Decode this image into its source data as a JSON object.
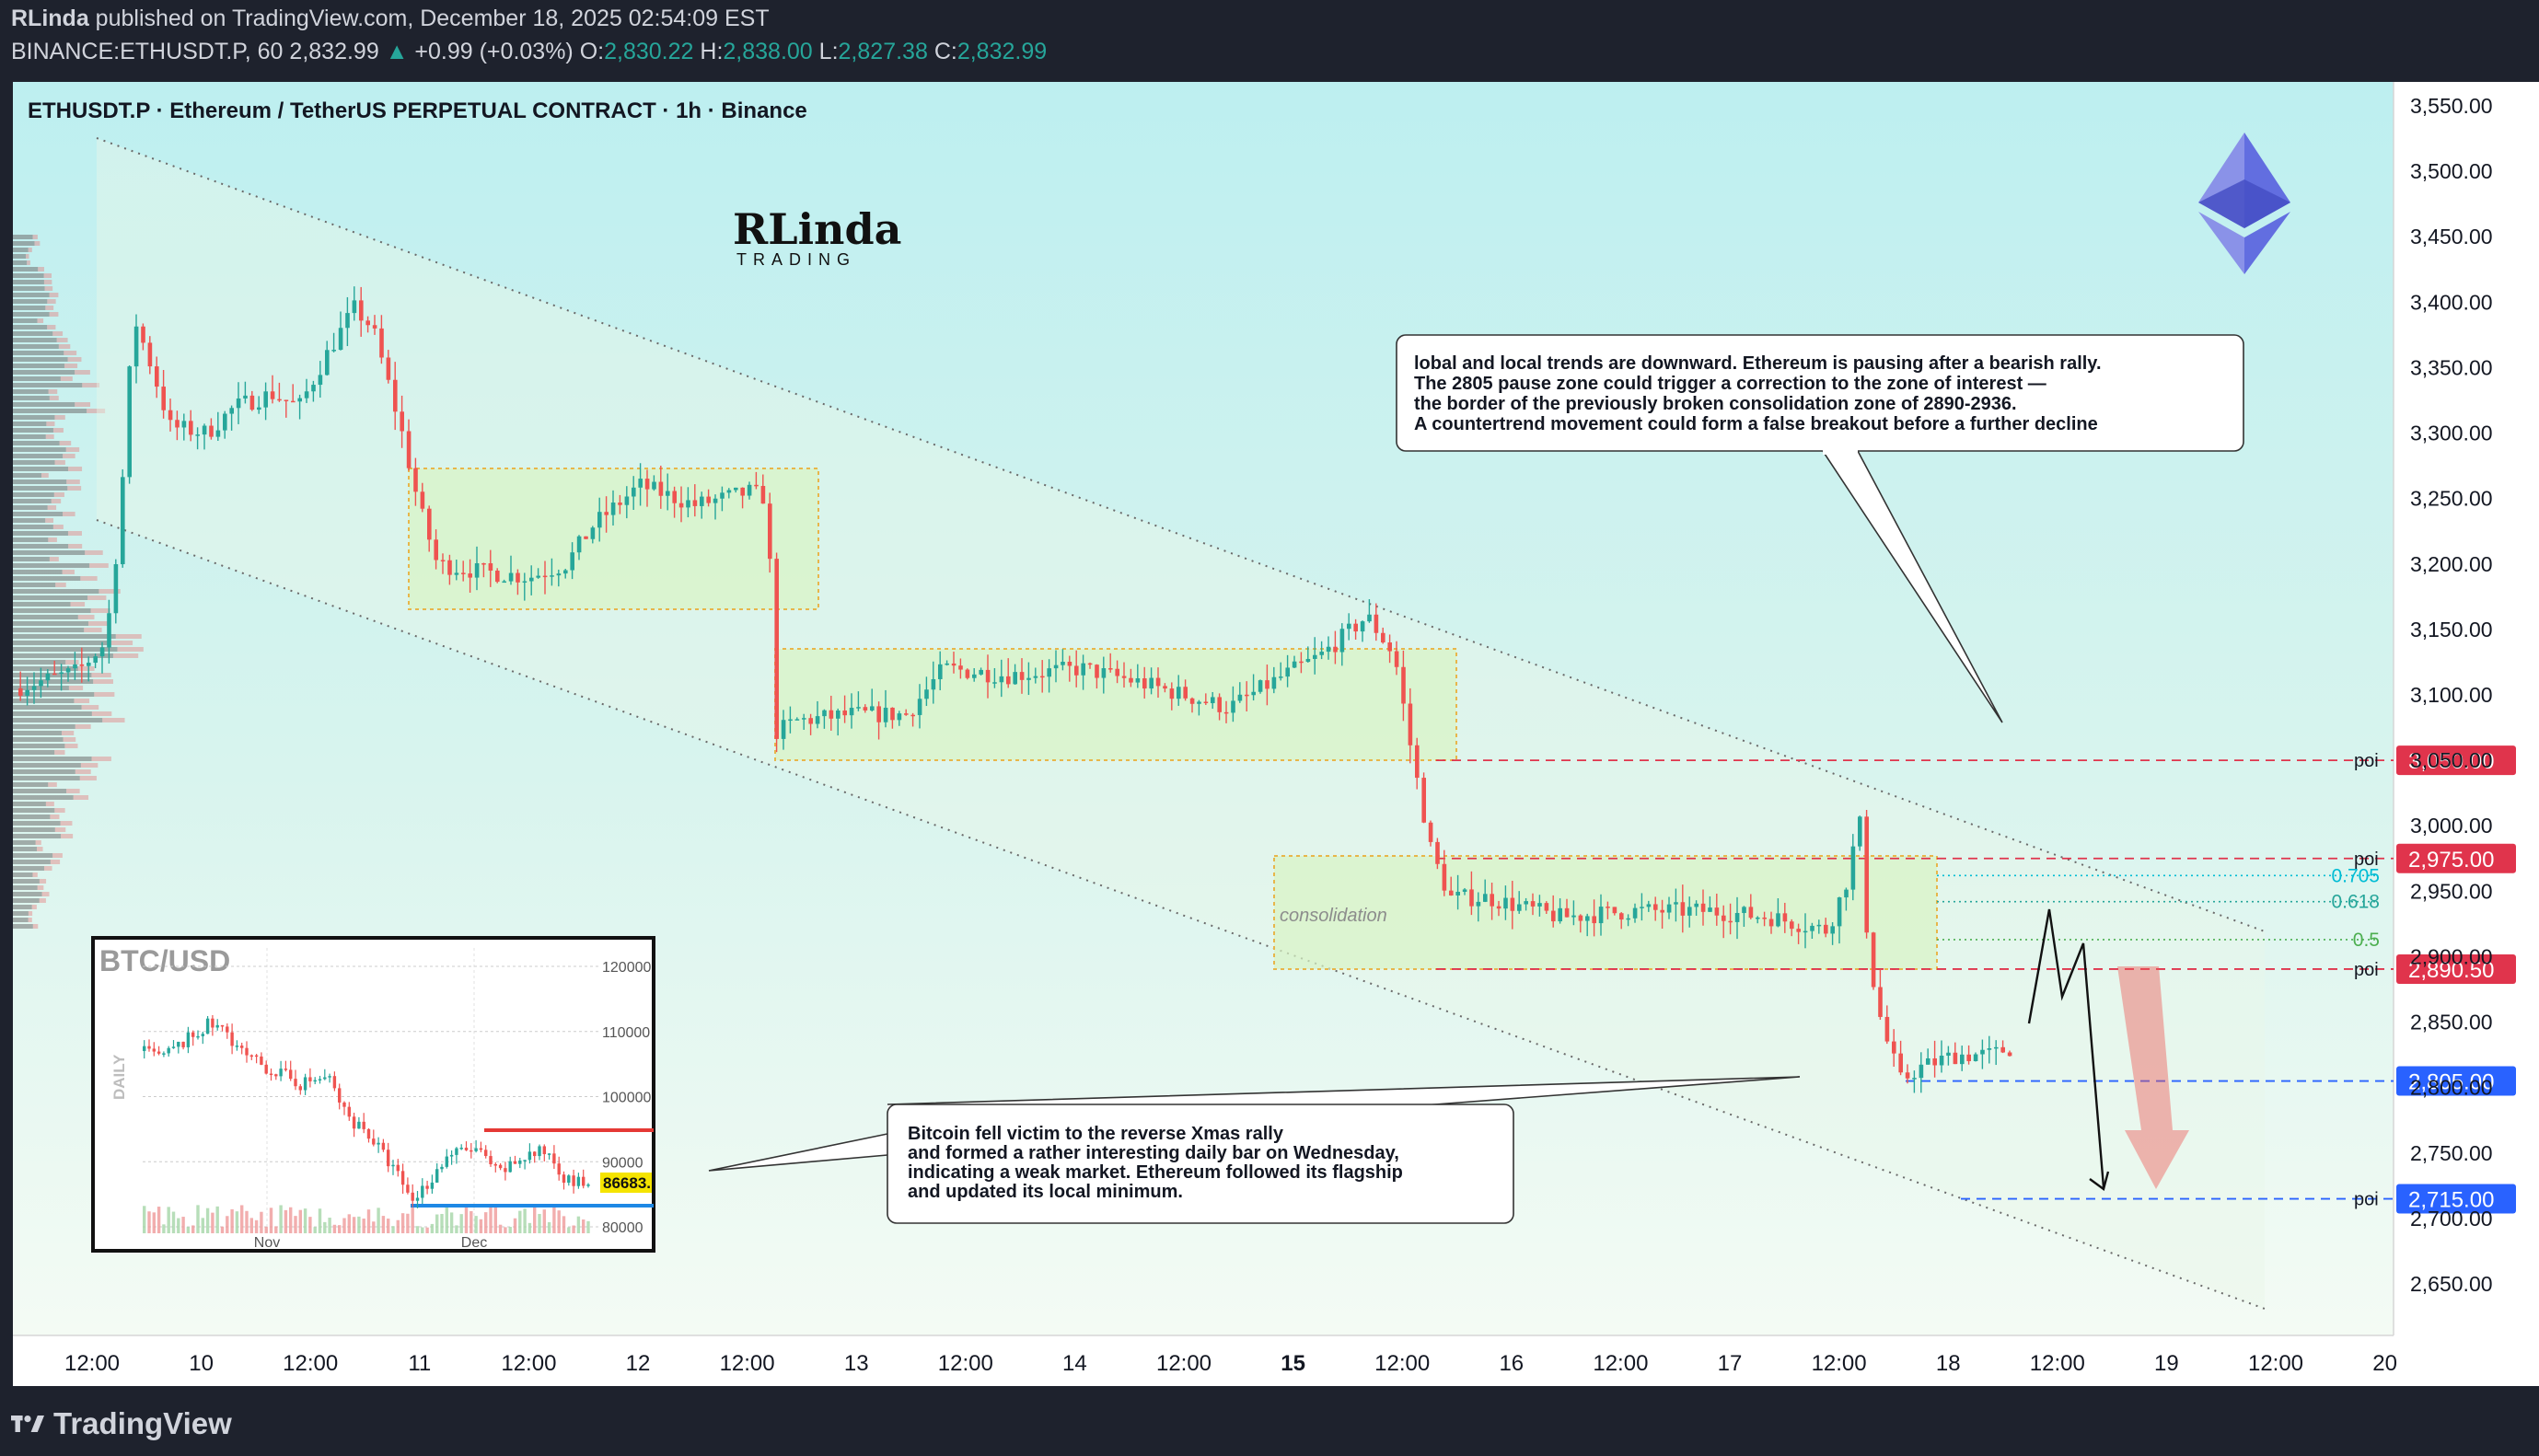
{
  "header": {
    "publisher": "RLinda",
    "published_text": "published on TradingView.com, December 18, 2025 02:54:09 EST",
    "symbol_line": "BINANCE:ETHUSDT.P, 60",
    "last_price": "2,832.99",
    "change": "+0.99 (+0.03%)",
    "open_label": "O:",
    "open": "2,830.22",
    "high_label": "H:",
    "high": "2,838.00",
    "low_label": "L:",
    "low": "2,827.38",
    "close_label": "C:",
    "close": "2,832.99"
  },
  "chart_title": "ETHUSDT.P · Ethereum / TetherUS PERPETUAL CONTRACT · 1h · Binance",
  "brand": {
    "logo_main": "RLinda",
    "logo_sub": "TRADING"
  },
  "footer": {
    "brand": "TradingView"
  },
  "annotations": {
    "top_note": [
      "lobal and local trends are downward. Ethereum is pausing after a bearish rally.",
      "The 2805 pause zone could trigger a correction to the zone of interest —",
      "the border of the previously broken consolidation zone of 2890-2936.",
      "A countertrend movement could form a false breakout before a further decline"
    ],
    "bottom_note": [
      "Bitcoin fell victim to the reverse Xmas rally",
      "and formed a rather interesting daily bar on Wednesday,",
      "indicating a weak market. Ethereum followed its flagship",
      "and updated its local minimum."
    ],
    "consolidation_label": "consolidation"
  },
  "chart_data": [
    {
      "type": "candlestick",
      "title": "ETHUSDT.P · Ethereum / TetherUS PERPETUAL CONTRACT · 1h · Binance",
      "x_ticks": [
        "12:00",
        "10",
        "12:00",
        "11",
        "12:00",
        "12",
        "12:00",
        "13",
        "12:00",
        "14",
        "12:00",
        "15",
        "12:00",
        "16",
        "12:00",
        "17",
        "12:00",
        "18",
        "12:00",
        "19",
        "12:00",
        "20"
      ],
      "y_ticks": [
        "3,550.00",
        "3,500.00",
        "3,450.00",
        "3,400.00",
        "3,350.00",
        "3,300.00",
        "3,250.00",
        "3,200.00",
        "3,150.00",
        "3,100.00",
        "3,050.00",
        "3,000.00",
        "2,950.00",
        "2,900.00",
        "2,850.00",
        "2,800.00",
        "2,750.00",
        "2,700.00",
        "2,650.00"
      ],
      "ylim": [
        2620,
        3570
      ],
      "levels": [
        {
          "label": "poi",
          "tag": "3,050.00",
          "value": 3050,
          "color": "#e0344c"
        },
        {
          "label": "poi",
          "tag": "2,975.00",
          "value": 2975,
          "color": "#e0344c"
        },
        {
          "label": "poi",
          "tag": "2,890.50",
          "value": 2890.5,
          "color": "#e0344c"
        },
        {
          "label": "",
          "tag": "2,805.00",
          "value": 2805,
          "color": "#2962ff"
        },
        {
          "label": "poi",
          "tag": "2,715.00",
          "value": 2715,
          "color": "#2962ff"
        }
      ],
      "fib_levels": [
        {
          "label": "0.705",
          "value": 2962,
          "color": "#00bcd4"
        },
        {
          "label": "0.618",
          "value": 2942,
          "color": "#26a69a"
        },
        {
          "label": "0.5",
          "value": 2913,
          "color": "#4caf50"
        }
      ],
      "colors": {
        "up": "#26a69a",
        "down": "#ef5350",
        "background_top": "#bdeff0",
        "background_bottom": "#f4fbf4"
      }
    },
    {
      "type": "candlestick",
      "title": "BTC/USD",
      "side_label": "DAILY",
      "x_ticks": [
        "Nov",
        "Dec"
      ],
      "y_ticks": [
        "120000",
        "110000",
        "100000",
        "90000",
        "80000"
      ],
      "last_price_tag": "86683.",
      "ylim": [
        78000,
        124000
      ]
    }
  ]
}
